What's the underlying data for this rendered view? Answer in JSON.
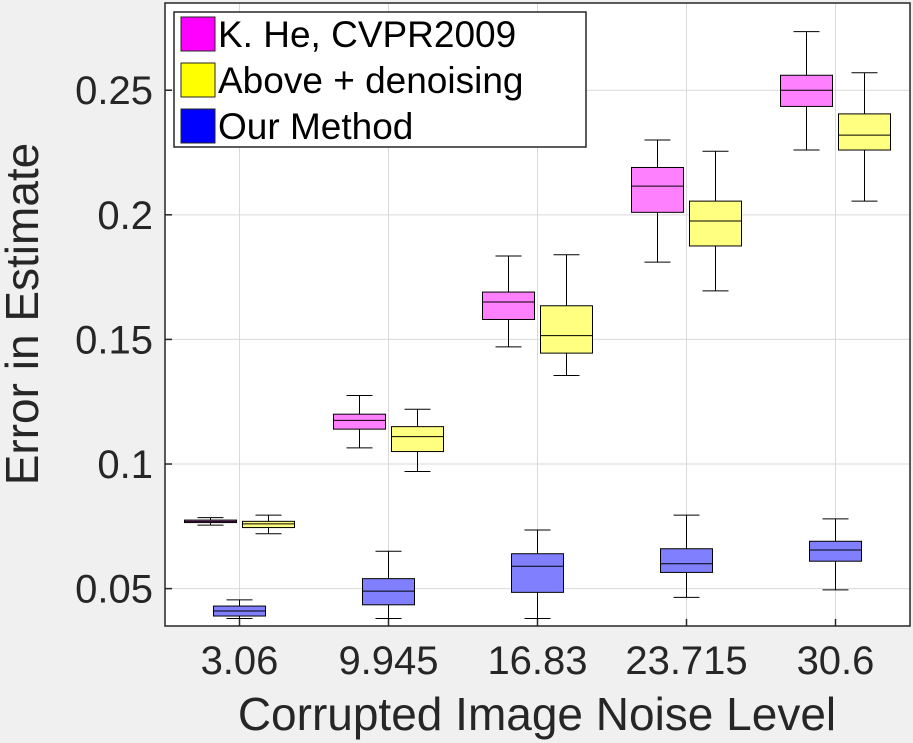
{
  "chart_data": {
    "type": "boxplot",
    "xlabel": "Corrupted Image Noise Level",
    "ylabel": "Error in Estimate",
    "categories": [
      "3.06",
      "9.945",
      "16.83",
      "23.715",
      "30.6"
    ],
    "ylim": [
      0.035,
      0.285
    ],
    "yticks": [
      0.05,
      0.1,
      0.15,
      0.2,
      0.25
    ],
    "ytick_labels": [
      "0.05",
      "0.1",
      "0.15",
      "0.2",
      "0.25"
    ],
    "grid": true,
    "legend_position": "top-left",
    "series": [
      {
        "name": "K. He, CVPR2009",
        "color": "#ff00ff",
        "box_color": "#ff80ff",
        "boxes": [
          {
            "whisker_low": 0.0755,
            "q1": 0.0765,
            "median": 0.077,
            "q3": 0.0775,
            "whisker_high": 0.0785
          },
          {
            "whisker_low": 0.1065,
            "q1": 0.114,
            "median": 0.1175,
            "q3": 0.12,
            "whisker_high": 0.1275
          },
          {
            "whisker_low": 0.147,
            "q1": 0.158,
            "median": 0.165,
            "q3": 0.169,
            "whisker_high": 0.1835
          },
          {
            "whisker_low": 0.181,
            "q1": 0.201,
            "median": 0.2115,
            "q3": 0.219,
            "whisker_high": 0.23
          },
          {
            "whisker_low": 0.226,
            "q1": 0.2435,
            "median": 0.25,
            "q3": 0.256,
            "whisker_high": 0.2735
          }
        ]
      },
      {
        "name": "Above + denoising",
        "color": "#ffff00",
        "box_color": "#ffff80",
        "boxes": [
          {
            "whisker_low": 0.072,
            "q1": 0.0745,
            "median": 0.076,
            "q3": 0.077,
            "whisker_high": 0.0795
          },
          {
            "whisker_low": 0.097,
            "q1": 0.105,
            "median": 0.111,
            "q3": 0.115,
            "whisker_high": 0.122
          },
          {
            "whisker_low": 0.1355,
            "q1": 0.1445,
            "median": 0.1515,
            "q3": 0.1635,
            "whisker_high": 0.184
          },
          {
            "whisker_low": 0.1695,
            "q1": 0.1875,
            "median": 0.1975,
            "q3": 0.2055,
            "whisker_high": 0.2255
          },
          {
            "whisker_low": 0.2055,
            "q1": 0.226,
            "median": 0.232,
            "q3": 0.2405,
            "whisker_high": 0.257
          }
        ]
      },
      {
        "name": "Our Method",
        "color": "#0000ff",
        "box_color": "#8080ff",
        "boxes": [
          {
            "whisker_low": 0.038,
            "q1": 0.039,
            "median": 0.041,
            "q3": 0.043,
            "whisker_high": 0.0455
          },
          {
            "whisker_low": 0.038,
            "q1": 0.0435,
            "median": 0.049,
            "q3": 0.054,
            "whisker_high": 0.065
          },
          {
            "whisker_low": 0.038,
            "q1": 0.0485,
            "median": 0.059,
            "q3": 0.064,
            "whisker_high": 0.0735
          },
          {
            "whisker_low": 0.0465,
            "q1": 0.0565,
            "median": 0.06,
            "q3": 0.066,
            "whisker_high": 0.0795
          },
          {
            "whisker_low": 0.0495,
            "q1": 0.061,
            "median": 0.0655,
            "q3": 0.069,
            "whisker_high": 0.078
          }
        ]
      }
    ]
  }
}
